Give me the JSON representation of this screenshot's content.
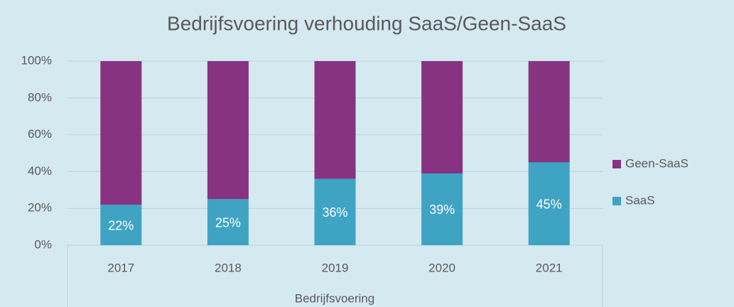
{
  "chart_data": {
    "type": "stacked_bar",
    "title": "Bedrijfsvoering verhouding SaaS/Geen-SaaS",
    "x_group_label": "Bedrijfsvoering",
    "categories": [
      "2017",
      "2018",
      "2019",
      "2020",
      "2021"
    ],
    "series": [
      {
        "name": "SaaS",
        "color": "#3fa3c4",
        "values": [
          22,
          25,
          36,
          39,
          45
        ],
        "value_labels": [
          "22%",
          "25%",
          "36%",
          "39%",
          "45%"
        ]
      },
      {
        "name": "Geen-SaaS",
        "color": "#873382",
        "values": [
          78,
          75,
          64,
          61,
          55
        ]
      }
    ],
    "ylim": [
      0,
      100
    ],
    "yticks": [
      {
        "value": 0,
        "label": "0%"
      },
      {
        "value": 20,
        "label": "20%"
      },
      {
        "value": 40,
        "label": "40%"
      },
      {
        "value": 60,
        "label": "60%"
      },
      {
        "value": 80,
        "label": "80%"
      },
      {
        "value": 100,
        "label": "100%"
      }
    ],
    "grid": true,
    "legend": "right"
  }
}
